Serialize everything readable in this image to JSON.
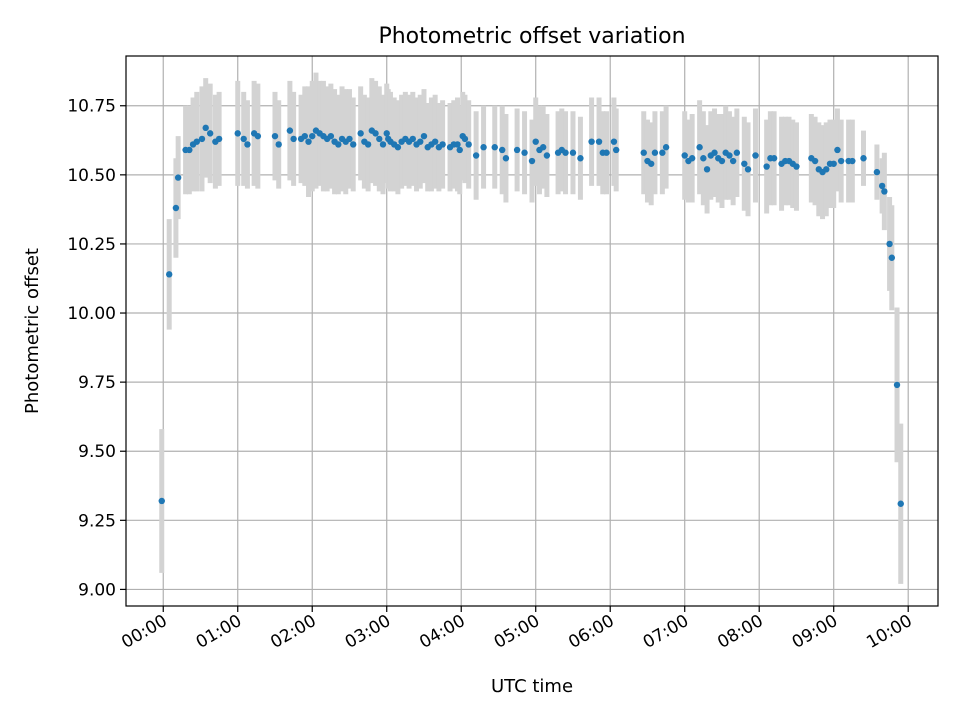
{
  "chart_data": {
    "type": "scatter",
    "title": "Photometric offset variation",
    "xlabel": "UTC time",
    "ylabel": "Photometric offset",
    "xlim": [
      -0.5,
      10.4
    ],
    "ylim": [
      8.94,
      10.93
    ],
    "grid": true,
    "x_ticks": [
      0,
      1,
      2,
      3,
      4,
      5,
      6,
      7,
      8,
      9,
      10
    ],
    "x_tick_labels": [
      "00:00",
      "01:00",
      "02:00",
      "03:00",
      "04:00",
      "05:00",
      "06:00",
      "07:00",
      "08:00",
      "09:00",
      "10:00"
    ],
    "y_ticks": [
      9.0,
      9.25,
      9.5,
      9.75,
      10.0,
      10.25,
      10.5,
      10.75
    ],
    "y_tick_labels": [
      "9.00",
      "9.25",
      "9.50",
      "9.75",
      "10.00",
      "10.25",
      "10.50",
      "10.75"
    ],
    "colors": {
      "point": "#1f77b4",
      "errorbar": "#d3d3d3",
      "grid": "#b0b0b0"
    },
    "series": [
      {
        "name": "Photometric offset",
        "points": [
          [
            -0.02,
            9.32,
            0.26
          ],
          [
            0.08,
            10.14,
            0.2
          ],
          [
            0.17,
            10.38,
            0.18
          ],
          [
            0.2,
            10.49,
            0.15
          ],
          [
            0.3,
            10.59,
            0.16
          ],
          [
            0.35,
            10.59,
            0.16
          ],
          [
            0.4,
            10.61,
            0.17
          ],
          [
            0.45,
            10.62,
            0.18
          ],
          [
            0.52,
            10.63,
            0.19
          ],
          [
            0.57,
            10.67,
            0.18
          ],
          [
            0.63,
            10.65,
            0.18
          ],
          [
            0.7,
            10.62,
            0.17
          ],
          [
            0.75,
            10.63,
            0.17
          ],
          [
            1.0,
            10.65,
            0.19
          ],
          [
            1.08,
            10.63,
            0.17
          ],
          [
            1.13,
            10.61,
            0.16
          ],
          [
            1.22,
            10.65,
            0.19
          ],
          [
            1.27,
            10.64,
            0.19
          ],
          [
            1.5,
            10.64,
            0.16
          ],
          [
            1.55,
            10.61,
            0.16
          ],
          [
            1.7,
            10.66,
            0.18
          ],
          [
            1.75,
            10.63,
            0.17
          ],
          [
            1.85,
            10.63,
            0.16
          ],
          [
            1.9,
            10.64,
            0.18
          ],
          [
            1.95,
            10.62,
            0.2
          ],
          [
            2.0,
            10.64,
            0.2
          ],
          [
            2.05,
            10.66,
            0.21
          ],
          [
            2.1,
            10.65,
            0.19
          ],
          [
            2.15,
            10.64,
            0.2
          ],
          [
            2.2,
            10.63,
            0.19
          ],
          [
            2.25,
            10.64,
            0.19
          ],
          [
            2.3,
            10.62,
            0.19
          ],
          [
            2.35,
            10.61,
            0.18
          ],
          [
            2.4,
            10.63,
            0.19
          ],
          [
            2.45,
            10.62,
            0.19
          ],
          [
            2.5,
            10.63,
            0.18
          ],
          [
            2.55,
            10.61,
            0.17
          ],
          [
            2.65,
            10.65,
            0.17
          ],
          [
            2.7,
            10.62,
            0.17
          ],
          [
            2.75,
            10.61,
            0.17
          ],
          [
            2.8,
            10.66,
            0.19
          ],
          [
            2.85,
            10.65,
            0.19
          ],
          [
            2.9,
            10.63,
            0.19
          ],
          [
            2.95,
            10.61,
            0.18
          ],
          [
            3.0,
            10.65,
            0.18
          ],
          [
            3.02,
            10.63,
            0.18
          ],
          [
            3.05,
            10.62,
            0.18
          ],
          [
            3.1,
            10.61,
            0.17
          ],
          [
            3.15,
            10.6,
            0.17
          ],
          [
            3.2,
            10.62,
            0.17
          ],
          [
            3.25,
            10.63,
            0.17
          ],
          [
            3.3,
            10.62,
            0.17
          ],
          [
            3.35,
            10.63,
            0.17
          ],
          [
            3.4,
            10.61,
            0.17
          ],
          [
            3.45,
            10.62,
            0.17
          ],
          [
            3.5,
            10.64,
            0.17
          ],
          [
            3.55,
            10.6,
            0.16
          ],
          [
            3.6,
            10.61,
            0.17
          ],
          [
            3.65,
            10.62,
            0.17
          ],
          [
            3.7,
            10.6,
            0.16
          ],
          [
            3.75,
            10.61,
            0.16
          ],
          [
            3.85,
            10.6,
            0.16
          ],
          [
            3.9,
            10.61,
            0.16
          ],
          [
            3.95,
            10.61,
            0.17
          ],
          [
            3.98,
            10.59,
            0.16
          ],
          [
            4.02,
            10.64,
            0.16
          ],
          [
            4.05,
            10.63,
            0.16
          ],
          [
            4.1,
            10.61,
            0.16
          ],
          [
            4.2,
            10.57,
            0.16
          ],
          [
            4.3,
            10.6,
            0.15
          ],
          [
            4.45,
            10.6,
            0.15
          ],
          [
            4.55,
            10.59,
            0.16
          ],
          [
            4.6,
            10.56,
            0.16
          ],
          [
            4.75,
            10.59,
            0.15
          ],
          [
            4.85,
            10.58,
            0.15
          ],
          [
            4.95,
            10.55,
            0.15
          ],
          [
            5.0,
            10.62,
            0.16
          ],
          [
            5.05,
            10.59,
            0.16
          ],
          [
            5.1,
            10.6,
            0.15
          ],
          [
            5.15,
            10.57,
            0.15
          ],
          [
            5.3,
            10.58,
            0.15
          ],
          [
            5.35,
            10.59,
            0.15
          ],
          [
            5.4,
            10.58,
            0.15
          ],
          [
            5.5,
            10.58,
            0.15
          ],
          [
            5.6,
            10.56,
            0.15
          ],
          [
            5.75,
            10.62,
            0.16
          ],
          [
            5.85,
            10.62,
            0.16
          ],
          [
            5.9,
            10.58,
            0.15
          ],
          [
            5.95,
            10.58,
            0.15
          ],
          [
            6.05,
            10.62,
            0.16
          ],
          [
            6.08,
            10.59,
            0.15
          ],
          [
            6.45,
            10.58,
            0.15
          ],
          [
            6.5,
            10.55,
            0.15
          ],
          [
            6.55,
            10.54,
            0.15
          ],
          [
            6.6,
            10.58,
            0.15
          ],
          [
            6.7,
            10.58,
            0.15
          ],
          [
            6.75,
            10.6,
            0.15
          ],
          [
            7.0,
            10.57,
            0.16
          ],
          [
            7.05,
            10.55,
            0.15
          ],
          [
            7.1,
            10.56,
            0.16
          ],
          [
            7.2,
            10.6,
            0.17
          ],
          [
            7.25,
            10.56,
            0.17
          ],
          [
            7.3,
            10.52,
            0.16
          ],
          [
            7.35,
            10.57,
            0.16
          ],
          [
            7.4,
            10.58,
            0.16
          ],
          [
            7.45,
            10.56,
            0.16
          ],
          [
            7.5,
            10.55,
            0.17
          ],
          [
            7.55,
            10.58,
            0.17
          ],
          [
            7.6,
            10.57,
            0.16
          ],
          [
            7.65,
            10.55,
            0.16
          ],
          [
            7.7,
            10.58,
            0.16
          ],
          [
            7.8,
            10.54,
            0.17
          ],
          [
            7.85,
            10.52,
            0.17
          ],
          [
            7.95,
            10.57,
            0.17
          ],
          [
            8.1,
            10.53,
            0.17
          ],
          [
            8.15,
            10.56,
            0.17
          ],
          [
            8.2,
            10.56,
            0.17
          ],
          [
            8.3,
            10.54,
            0.17
          ],
          [
            8.35,
            10.55,
            0.16
          ],
          [
            8.4,
            10.55,
            0.16
          ],
          [
            8.45,
            10.54,
            0.16
          ],
          [
            8.5,
            10.53,
            0.16
          ],
          [
            8.7,
            10.56,
            0.16
          ],
          [
            8.75,
            10.55,
            0.16
          ],
          [
            8.8,
            10.52,
            0.17
          ],
          [
            8.85,
            10.51,
            0.17
          ],
          [
            8.9,
            10.52,
            0.17
          ],
          [
            8.95,
            10.54,
            0.16
          ],
          [
            9.0,
            10.54,
            0.16
          ],
          [
            9.05,
            10.59,
            0.15
          ],
          [
            9.1,
            10.55,
            0.15
          ],
          [
            9.2,
            10.55,
            0.15
          ],
          [
            9.25,
            10.55,
            0.15
          ],
          [
            9.4,
            10.56,
            0.1
          ],
          [
            9.58,
            10.51,
            0.1
          ],
          [
            9.65,
            10.46,
            0.1
          ],
          [
            9.68,
            10.44,
            0.14
          ],
          [
            9.75,
            10.25,
            0.17
          ],
          [
            9.78,
            10.2,
            0.19
          ],
          [
            9.85,
            9.74,
            0.28
          ],
          [
            9.9,
            9.31,
            0.29
          ]
        ]
      }
    ]
  }
}
